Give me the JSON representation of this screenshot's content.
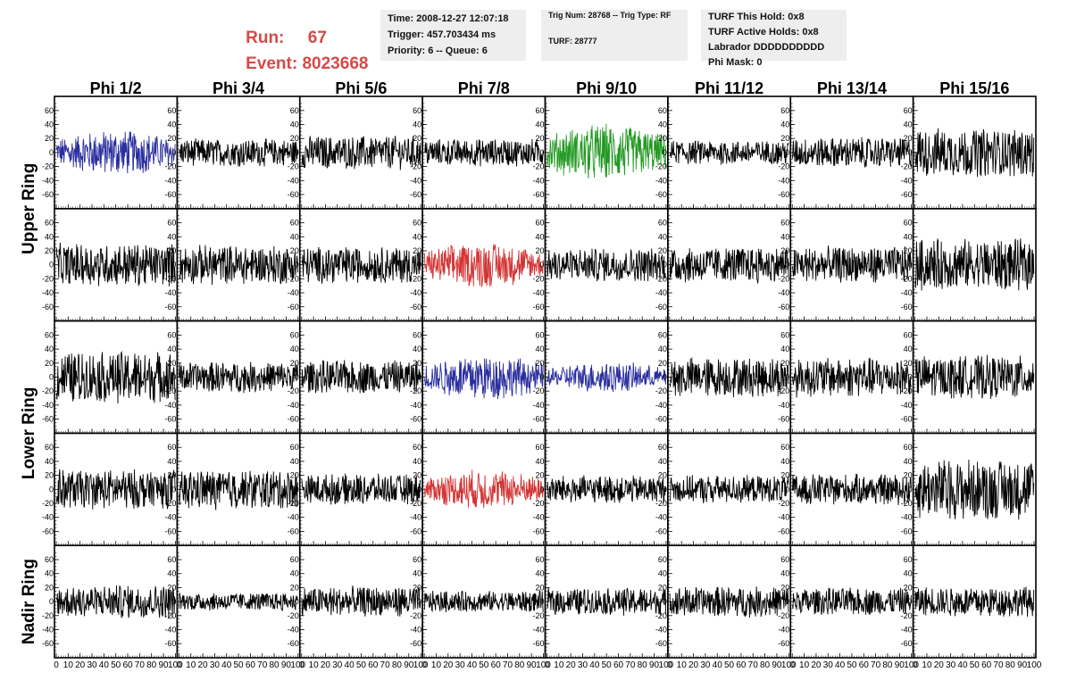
{
  "header": {
    "run_label": "Run:",
    "run_value": "67",
    "event_label": "Event:",
    "event_value": "8023668",
    "run_color": "#d44a48",
    "time_box": {
      "time": "Time: 2008-12-27 12:07:18",
      "trigger": "Trigger: 457.703434 ms",
      "priority": "Priority: 6 -- Queue: 6"
    },
    "trig_box": {
      "trig_line": "Trig Num: 28768 -- Trig Type: RF",
      "turf_line": "TURF: 28777"
    },
    "turf_box": {
      "this_hold": "TURF This Hold: 0x8",
      "active_holds": "TURF Active Holds: 0x8",
      "labrador": "Labrador DDDDDDDDDD",
      "phi_mask": "Phi Mask: 0"
    }
  },
  "grid": {
    "columns": [
      "Phi 1/2",
      "Phi 3/4",
      "Phi 5/6",
      "Phi 7/8",
      "Phi 9/10",
      "Phi 11/12",
      "Phi 13/14",
      "Phi 15/16"
    ],
    "ring_labels": [
      "Upper Ring",
      "Lower Ring",
      "Nadir Ring"
    ],
    "y_ticks": [
      60,
      40,
      20,
      0,
      -20,
      -40,
      -60
    ],
    "x_ticks": [
      "0",
      "10",
      "20",
      "30",
      "40",
      "50",
      "60",
      "70",
      "80",
      "90",
      "100"
    ],
    "ylim": [
      -70,
      70
    ],
    "xlim": [
      0,
      100
    ],
    "trace_colors": {
      "black": "#000000",
      "blue": "#2b2f9e",
      "green": "#229922",
      "red": "#d43333"
    },
    "row_colors": [
      [
        "blue",
        "black",
        "black",
        "black",
        "green",
        "black",
        "black",
        "black"
      ],
      [
        "black",
        "black",
        "black",
        "red",
        "black",
        "black",
        "black",
        "black"
      ],
      [
        "black",
        "black",
        "black",
        "blue",
        "blue",
        "black",
        "black",
        "black"
      ],
      [
        "black",
        "black",
        "black",
        "red",
        "black",
        "black",
        "black",
        "black"
      ],
      [
        "black",
        "black",
        "black",
        "black",
        "black",
        "black",
        "black",
        "black"
      ]
    ],
    "row_amplitudes": [
      [
        30,
        18,
        22,
        18,
        38,
        16,
        20,
        32
      ],
      [
        28,
        26,
        24,
        30,
        22,
        24,
        24,
        34
      ],
      [
        34,
        20,
        22,
        30,
        20,
        26,
        26,
        28
      ],
      [
        26,
        26,
        20,
        26,
        18,
        18,
        20,
        40
      ],
      [
        22,
        12,
        20,
        14,
        18,
        20,
        18,
        20
      ]
    ]
  }
}
